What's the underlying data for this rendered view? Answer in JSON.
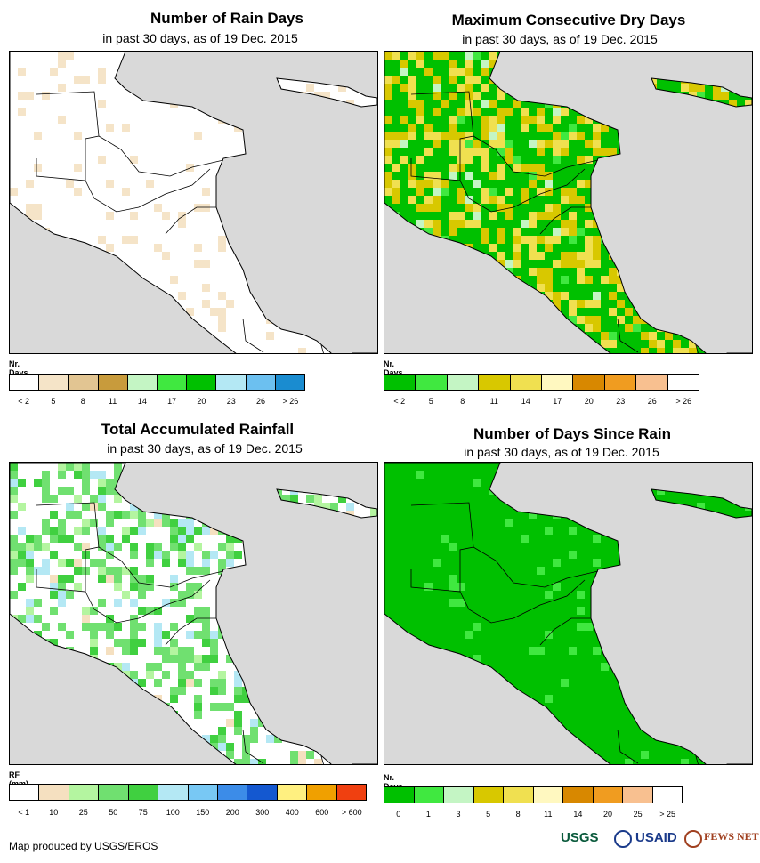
{
  "panels": [
    {
      "id": "rain-days",
      "title": "Number of Rain Days",
      "subtitle": "in past 30 days, as of 19 Dec. 2015",
      "legend_title": "Nr. Days",
      "legend_colors": [
        "#ffffff",
        "#f5e4c8",
        "#e2c592",
        "#c89b3c",
        "#c4f5c4",
        "#40e840",
        "#00c000",
        "#b4e8f4",
        "#6cc0f0",
        "#1a8cd0"
      ],
      "legend_labels": [
        "< 2",
        "5",
        "8",
        "11",
        "14",
        "17",
        "20",
        "23",
        "26",
        "> 26"
      ],
      "palette_weights": [
        38,
        26,
        18,
        8,
        1,
        1,
        1,
        1,
        1,
        1
      ]
    },
    {
      "id": "dry-days",
      "title": "Maximum Consecutive Dry Days",
      "subtitle": "in past 30 days, as of 19 Dec. 2015",
      "legend_title": "Nr. Days",
      "legend_colors": [
        "#00c000",
        "#40e840",
        "#c4f5c4",
        "#d8c800",
        "#f0e050",
        "#fff8c0",
        "#d88800",
        "#f09c20",
        "#f8c090",
        "#ffffff"
      ],
      "legend_labels": [
        "< 2",
        "5",
        "8",
        "11",
        "14",
        "17",
        "20",
        "23",
        "26",
        "> 26"
      ],
      "palette_weights": [
        2,
        3,
        3,
        24,
        36,
        10,
        4,
        4,
        10,
        4
      ]
    },
    {
      "id": "rainfall",
      "title": "Total Accumulated Rainfall",
      "subtitle": "in past 30 days, as of 19 Dec. 2015",
      "legend_title": "RF (mm)",
      "legend_colors": [
        "#ffffff",
        "#f5e0c0",
        "#b4f5a0",
        "#70e070",
        "#40d040",
        "#b4e8f4",
        "#78c8f4",
        "#3c8ce8",
        "#1458d0",
        "#fff080",
        "#f0a000",
        "#f04010"
      ],
      "legend_labels": [
        "< 1",
        "10",
        "25",
        "50",
        "75",
        "100",
        "150",
        "200",
        "300",
        "400",
        "600",
        "> 600"
      ],
      "palette_weights": [
        1,
        2,
        6,
        24,
        12,
        10,
        14,
        18,
        8,
        2,
        2,
        1
      ]
    },
    {
      "id": "days-since-rain",
      "title": "Number of Days Since Rain",
      "subtitle": "in past 30 days, as of 19 Dec. 2015",
      "legend_title": "Nr. Days",
      "legend_colors": [
        "#00c000",
        "#40e840",
        "#c4f5c4",
        "#d8c800",
        "#f0e050",
        "#fff8c0",
        "#d88800",
        "#f09c20",
        "#f8c090",
        "#ffffff"
      ],
      "legend_labels": [
        "0",
        "1",
        "3",
        "5",
        "8",
        "11",
        "14",
        "20",
        "25",
        "> 25"
      ],
      "palette_weights": [
        44,
        10,
        5,
        6,
        8,
        4,
        9,
        3,
        1,
        10
      ]
    }
  ],
  "footer": {
    "credit": "Map produced by USGS/EROS",
    "logos": [
      "USGS",
      "USAID",
      "FEWS NET"
    ]
  },
  "colors": {
    "map_background": "#d9d9d9",
    "border": "#000000"
  }
}
